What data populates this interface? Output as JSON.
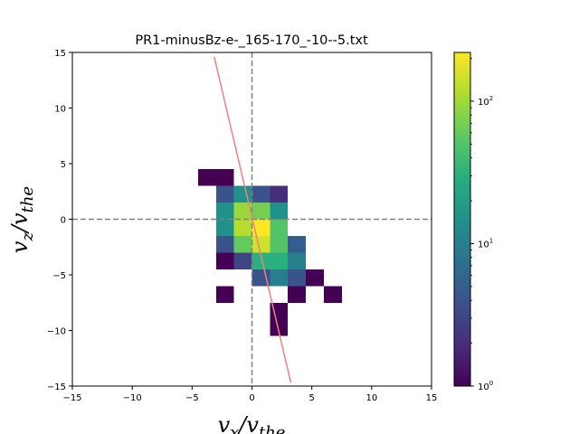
{
  "chart_data": {
    "type": "heatmap",
    "title": "PR1-minusBz-e-_165-170_-10--5.txt",
    "xlabel": {
      "main": "v",
      "sub": "x",
      "sep": "/",
      "main2": "v",
      "sub2": "the"
    },
    "ylabel": {
      "main": "v",
      "sub": "z",
      "sep": "/",
      "main2": "v",
      "sub2": "the"
    },
    "xlim": [
      -15,
      15
    ],
    "ylim": [
      -15,
      15
    ],
    "x_ticks": [
      -15,
      -10,
      -5,
      0,
      5,
      10,
      15
    ],
    "y_ticks": [
      -15,
      -10,
      -5,
      0,
      5,
      10,
      15
    ],
    "x_tick_labels": [
      "−15",
      "−10",
      "−5",
      "0",
      "5",
      "10",
      "15"
    ],
    "y_tick_labels": [
      "−15",
      "−10",
      "−5",
      "0",
      "5",
      "10",
      "15"
    ],
    "bin_size": 1.5,
    "colormap": "viridis",
    "color_scale": "log",
    "color_range": [
      1,
      220
    ],
    "colorbar_ticks": [
      {
        "value": 1,
        "base": "10",
        "exp": "0"
      },
      {
        "value": 10,
        "base": "10",
        "exp": "1"
      },
      {
        "value": 100,
        "base": "10",
        "exp": "2"
      }
    ],
    "cells": [
      {
        "x": [
          -4.5,
          -3.0
        ],
        "y": [
          3.0,
          4.5
        ],
        "count": 1
      },
      {
        "x": [
          -3.0,
          -1.5
        ],
        "y": [
          3.0,
          4.5
        ],
        "count": 1
      },
      {
        "x": [
          -3.0,
          -1.5
        ],
        "y": [
          1.5,
          3.0
        ],
        "count": 4
      },
      {
        "x": [
          -1.5,
          0.0
        ],
        "y": [
          1.5,
          3.0
        ],
        "count": 15
      },
      {
        "x": [
          0.0,
          1.5
        ],
        "y": [
          1.5,
          3.0
        ],
        "count": 4
      },
      {
        "x": [
          1.5,
          3.0
        ],
        "y": [
          1.5,
          3.0
        ],
        "count": 2
      },
      {
        "x": [
          -3.0,
          -1.5
        ],
        "y": [
          0.0,
          1.5
        ],
        "count": 15
      },
      {
        "x": [
          -1.5,
          0.0
        ],
        "y": [
          0.0,
          1.5
        ],
        "count": 95
      },
      {
        "x": [
          0.0,
          1.5
        ],
        "y": [
          0.0,
          1.5
        ],
        "count": 70
      },
      {
        "x": [
          1.5,
          3.0
        ],
        "y": [
          0.0,
          1.5
        ],
        "count": 15
      },
      {
        "x": [
          -3.0,
          -1.5
        ],
        "y": [
          -1.5,
          0.0
        ],
        "count": 15
      },
      {
        "x": [
          -1.5,
          0.0
        ],
        "y": [
          -1.5,
          0.0
        ],
        "count": 120
      },
      {
        "x": [
          0.0,
          1.5
        ],
        "y": [
          -1.5,
          0.0
        ],
        "count": 220
      },
      {
        "x": [
          1.5,
          3.0
        ],
        "y": [
          -1.5,
          0.0
        ],
        "count": 50
      },
      {
        "x": [
          -3.0,
          -1.5
        ],
        "y": [
          -3.0,
          -1.5
        ],
        "count": 4
      },
      {
        "x": [
          -1.5,
          0.0
        ],
        "y": [
          -3.0,
          -1.5
        ],
        "count": 60
      },
      {
        "x": [
          0.0,
          1.5
        ],
        "y": [
          -3.0,
          -1.5
        ],
        "count": 150
      },
      {
        "x": [
          1.5,
          3.0
        ],
        "y": [
          -3.0,
          -1.5
        ],
        "count": 50
      },
      {
        "x": [
          3.0,
          4.5
        ],
        "y": [
          -3.0,
          -1.5
        ],
        "count": 5
      },
      {
        "x": [
          -3.0,
          -1.5
        ],
        "y": [
          -4.5,
          -3.0
        ],
        "count": 1
      },
      {
        "x": [
          -1.5,
          0.0
        ],
        "y": [
          -4.5,
          -3.0
        ],
        "count": 3
      },
      {
        "x": [
          0.0,
          1.5
        ],
        "y": [
          -4.5,
          -3.0
        ],
        "count": 30
      },
      {
        "x": [
          1.5,
          3.0
        ],
        "y": [
          -4.5,
          -3.0
        ],
        "count": 30
      },
      {
        "x": [
          3.0,
          4.5
        ],
        "y": [
          -4.5,
          -3.0
        ],
        "count": 10
      },
      {
        "x": [
          0.0,
          1.5
        ],
        "y": [
          -6.0,
          -4.5
        ],
        "count": 4
      },
      {
        "x": [
          1.5,
          3.0
        ],
        "y": [
          -6.0,
          -4.5
        ],
        "count": 10
      },
      {
        "x": [
          3.0,
          4.5
        ],
        "y": [
          -6.0,
          -4.5
        ],
        "count": 4
      },
      {
        "x": [
          4.5,
          6.0
        ],
        "y": [
          -6.0,
          -4.5
        ],
        "count": 1
      },
      {
        "x": [
          -3.0,
          -1.5
        ],
        "y": [
          -7.5,
          -6.0
        ],
        "count": 1
      },
      {
        "x": [
          3.0,
          4.5
        ],
        "y": [
          -7.5,
          -6.0
        ],
        "count": 1
      },
      {
        "x": [
          6.0,
          7.5
        ],
        "y": [
          -7.5,
          -6.0
        ],
        "count": 1
      },
      {
        "x": [
          1.5,
          3.0
        ],
        "y": [
          -9.0,
          -7.5
        ],
        "count": 1
      },
      {
        "x": [
          1.5,
          3.0
        ],
        "y": [
          -10.5,
          -9.0
        ],
        "count": 1
      }
    ],
    "reference_lines": [
      {
        "orientation": "vertical",
        "value": 0,
        "style": "dashed",
        "color": "#808080"
      },
      {
        "orientation": "horizontal",
        "value": 0,
        "style": "dashed",
        "color": "#808080"
      }
    ],
    "fit_line": {
      "points": [
        [
          -3.15,
          14.6
        ],
        [
          3.25,
          -14.7
        ]
      ],
      "color": "#f08080"
    },
    "grid": false
  }
}
